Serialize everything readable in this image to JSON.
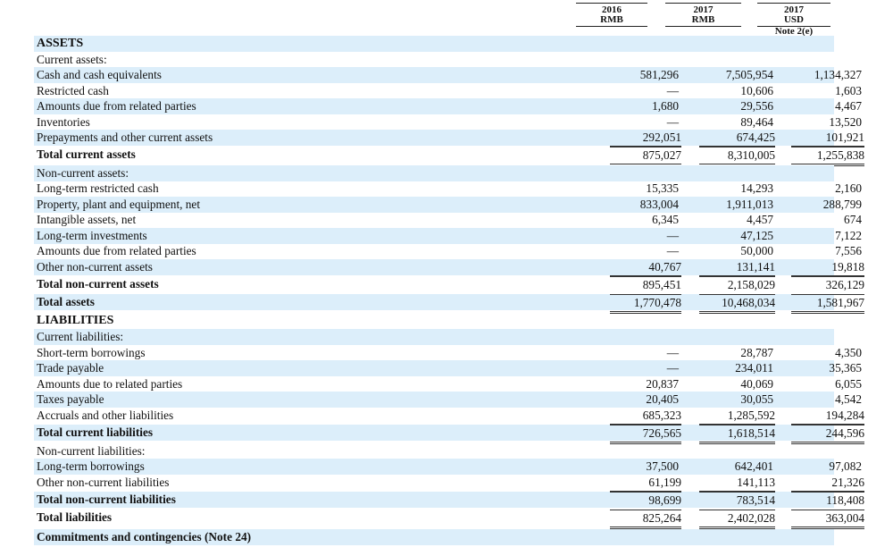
{
  "header": {
    "col1": {
      "year": "2016",
      "currency": "RMB",
      "note": ""
    },
    "col2": {
      "year": "2017",
      "currency": "RMB",
      "note": ""
    },
    "col3": {
      "year": "2017",
      "currency": "USD",
      "note": "Note 2(e)"
    }
  },
  "rows": [
    {
      "label": "ASSETS",
      "v": [
        "",
        "",
        ""
      ]
    },
    {
      "label": "Current assets:",
      "v": [
        "",
        "",
        ""
      ]
    },
    {
      "label": "Cash and cash equivalents",
      "v": [
        "581,296",
        "7,505,954",
        "1,134,327"
      ]
    },
    {
      "label": "Restricted cash",
      "v": [
        "—",
        "10,606",
        "1,603"
      ]
    },
    {
      "label": "Amounts due from related parties",
      "v": [
        "1,680",
        "29,556",
        "4,467"
      ]
    },
    {
      "label": "Inventories",
      "v": [
        "—",
        "89,464",
        "13,520"
      ]
    },
    {
      "label": "Prepayments and other current assets",
      "v": [
        "292,051",
        "674,425",
        "101,921"
      ]
    },
    {
      "label": "Total current assets",
      "v": [
        "875,027",
        "8,310,005",
        "1,255,838"
      ]
    },
    {
      "label": "Non-current assets:",
      "v": [
        "",
        "",
        ""
      ]
    },
    {
      "label": "Long-term restricted cash",
      "v": [
        "15,335",
        "14,293",
        "2,160"
      ]
    },
    {
      "label": "Property, plant and equipment, net",
      "v": [
        "833,004",
        "1,911,013",
        "288,799"
      ]
    },
    {
      "label": "Intangible assets, net",
      "v": [
        "6,345",
        "4,457",
        "674"
      ]
    },
    {
      "label": "Long-term investments",
      "v": [
        "—",
        "47,125",
        "7,122"
      ]
    },
    {
      "label": "Amounts due from related parties",
      "v": [
        "—",
        "50,000",
        "7,556"
      ]
    },
    {
      "label": "Other non-current assets",
      "v": [
        "40,767",
        "131,141",
        "19,818"
      ]
    },
    {
      "label": "Total non-current assets",
      "v": [
        "895,451",
        "2,158,029",
        "326,129"
      ]
    },
    {
      "label": "Total assets",
      "v": [
        "1,770,478",
        "10,468,034",
        "1,581,967"
      ]
    },
    {
      "label": "LIABILITIES",
      "v": [
        "",
        "",
        ""
      ]
    },
    {
      "label": "Current liabilities:",
      "v": [
        "",
        "",
        ""
      ]
    },
    {
      "label": "Short-term borrowings",
      "v": [
        "—",
        "28,787",
        "4,350"
      ]
    },
    {
      "label": "Trade payable",
      "v": [
        "—",
        "234,011",
        "35,365"
      ]
    },
    {
      "label": "Amounts due to related parties",
      "v": [
        "20,837",
        "40,069",
        "6,055"
      ]
    },
    {
      "label": "Taxes payable",
      "v": [
        "20,405",
        "30,055",
        "4,542"
      ]
    },
    {
      "label": "Accruals and other liabilities",
      "v": [
        "685,323",
        "1,285,592",
        "194,284"
      ]
    },
    {
      "label": "Total current liabilities",
      "v": [
        "726,565",
        "1,618,514",
        "244,596"
      ]
    },
    {
      "label": "Non-current liabilities:",
      "v": [
        "",
        "",
        ""
      ]
    },
    {
      "label": "Long-term borrowings",
      "v": [
        "37,500",
        "642,401",
        "97,082"
      ]
    },
    {
      "label": "Other non-current liabilities",
      "v": [
        "61,199",
        "141,113",
        "21,326"
      ]
    },
    {
      "label": "Total non-current liabilities",
      "v": [
        "98,699",
        "783,514",
        "118,408"
      ]
    },
    {
      "label": "Total liabilities",
      "v": [
        "825,264",
        "2,402,028",
        "363,004"
      ]
    },
    {
      "label": "Commitments and contingencies (Note 24)",
      "v": [
        "",
        "",
        ""
      ]
    }
  ]
}
